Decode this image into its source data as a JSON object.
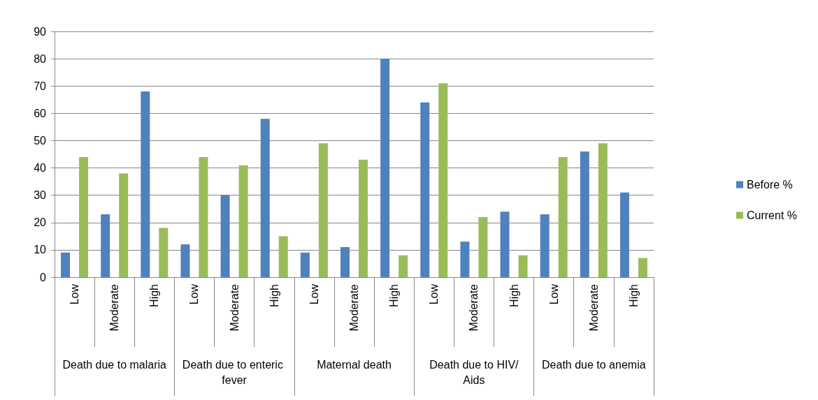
{
  "chart_data": {
    "type": "bar",
    "categories": [
      "Low",
      "Moderate",
      "High",
      "Low",
      "Moderate",
      "High",
      "Low",
      "Moderate",
      "High",
      "Low",
      "Moderate",
      "High",
      "Low",
      "Moderate",
      "High"
    ],
    "series": [
      {
        "name": "Before %",
        "color": "#4f81bd",
        "values": [
          9,
          23,
          68,
          12,
          30,
          58,
          9,
          11,
          80,
          64,
          13,
          24,
          23,
          46,
          31
        ]
      },
      {
        "name": "Current %",
        "color": "#9bbb59",
        "values": [
          44,
          38,
          18,
          44,
          41,
          15,
          49,
          43,
          8,
          71,
          22,
          8,
          44,
          49,
          7
        ]
      }
    ],
    "annotations": [
      "Death due to malaria",
      "Death due to enteric fever",
      "Maternal death",
      "Death due to HIV/Aids",
      "Death due to anemia"
    ],
    "ylim": [
      0,
      90
    ],
    "yticks": [
      0,
      10,
      20,
      30,
      40,
      50,
      60,
      70,
      80,
      90
    ],
    "grid": "y",
    "legend": "right"
  }
}
